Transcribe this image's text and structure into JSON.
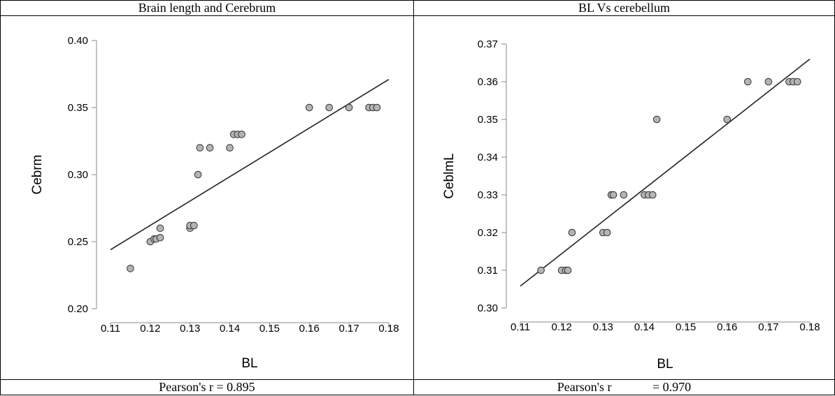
{
  "table": {
    "left_header": "Brain length and Cerebrum",
    "right_header": "BL Vs cerebellum",
    "left_footer": "Pearson's r = 0.895",
    "right_footer_label": "Pearson's r",
    "right_footer_value": "= 0.970"
  },
  "chart_data": [
    {
      "type": "scatter",
      "title": "Brain length and Cerebrum",
      "xlabel": "BL",
      "ylabel": "Cebrm",
      "xlim": [
        0.11,
        0.18
      ],
      "ylim": [
        0.2,
        0.4
      ],
      "xticks": [
        "0.11",
        "0.12",
        "0.13",
        "0.14",
        "0.15",
        "0.16",
        "0.17",
        "0.18"
      ],
      "yticks": [
        "0.20",
        "0.25",
        "0.30",
        "0.35",
        "0.40"
      ],
      "grid": false,
      "point_color": "#b4b4b4",
      "x": [
        0.115,
        0.12,
        0.121,
        0.1215,
        0.1225,
        0.1225,
        0.13,
        0.13,
        0.131,
        0.132,
        0.1325,
        0.135,
        0.14,
        0.141,
        0.142,
        0.143,
        0.16,
        0.165,
        0.17,
        0.175,
        0.176,
        0.177
      ],
      "y": [
        0.23,
        0.25,
        0.252,
        0.252,
        0.253,
        0.26,
        0.26,
        0.262,
        0.262,
        0.3,
        0.32,
        0.32,
        0.32,
        0.33,
        0.33,
        0.33,
        0.35,
        0.35,
        0.35,
        0.35,
        0.35,
        0.35
      ],
      "fit_line": {
        "x": [
          0.11,
          0.18
        ],
        "y": [
          0.244,
          0.371
        ]
      },
      "pearson_r": 0.895
    },
    {
      "type": "scatter",
      "title": "BL Vs cerebellum",
      "xlabel": "BL",
      "ylabel": "CeblmL",
      "xlim": [
        0.11,
        0.18
      ],
      "ylim": [
        0.3,
        0.37
      ],
      "xticks": [
        "0.11",
        "0.12",
        "0.13",
        "0.14",
        "0.15",
        "0.16",
        "0.17",
        "0.18"
      ],
      "yticks": [
        "0.30",
        "0.31",
        "0.32",
        "0.33",
        "0.34",
        "0.35",
        "0.36",
        "0.37"
      ],
      "grid": false,
      "point_color": "#b4b4b4",
      "x": [
        0.115,
        0.12,
        0.121,
        0.1215,
        0.1225,
        0.13,
        0.131,
        0.132,
        0.1325,
        0.135,
        0.14,
        0.141,
        0.142,
        0.143,
        0.16,
        0.165,
        0.17,
        0.175,
        0.176,
        0.177
      ],
      "y": [
        0.31,
        0.31,
        0.31,
        0.31,
        0.32,
        0.32,
        0.32,
        0.33,
        0.33,
        0.33,
        0.33,
        0.33,
        0.33,
        0.35,
        0.35,
        0.36,
        0.36,
        0.36,
        0.36,
        0.36
      ],
      "fit_line": {
        "x": [
          0.11,
          0.18
        ],
        "y": [
          0.3058,
          0.366
        ]
      },
      "pearson_r": 0.97
    }
  ]
}
